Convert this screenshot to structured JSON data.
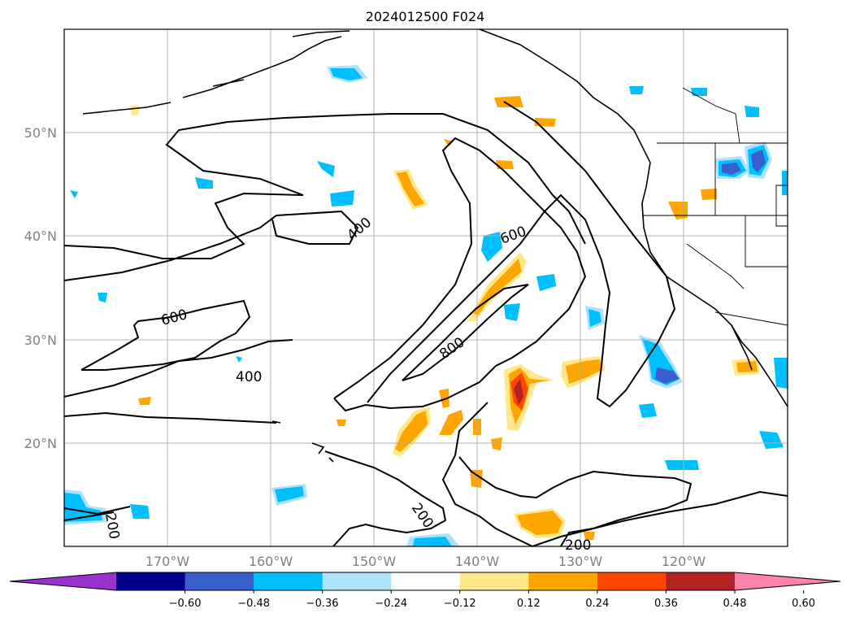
{
  "title": "2024012500 F024",
  "lat_labels": [
    "50°N",
    "40°N",
    "30°N",
    "20°N"
  ],
  "lon_labels": [
    "170°W",
    "160°W",
    "150°W",
    "140°W",
    "130°W",
    "120°W"
  ],
  "colorbar": {
    "ticks": [
      "−0.60",
      "−0.48",
      "−0.36",
      "−0.24",
      "−0.12",
      "0.12",
      "0.24",
      "0.36",
      "0.48",
      "0.60"
    ],
    "colors": [
      "#9932cc",
      "#00008b",
      "#3a5fcd",
      "#00bfff",
      "#aee2fa",
      "#ffffff",
      "#ffe88a",
      "#ffa500",
      "#ff4500",
      "#b22222",
      "#ff82ab"
    ]
  },
  "contour_labels": [
    "400",
    "600",
    "600",
    "400",
    "800",
    "200",
    "200",
    "200"
  ],
  "colors": {
    "contour": "#000000",
    "coast": "#000000",
    "grid": "#b0b0b0",
    "axis_text": "#808080"
  }
}
